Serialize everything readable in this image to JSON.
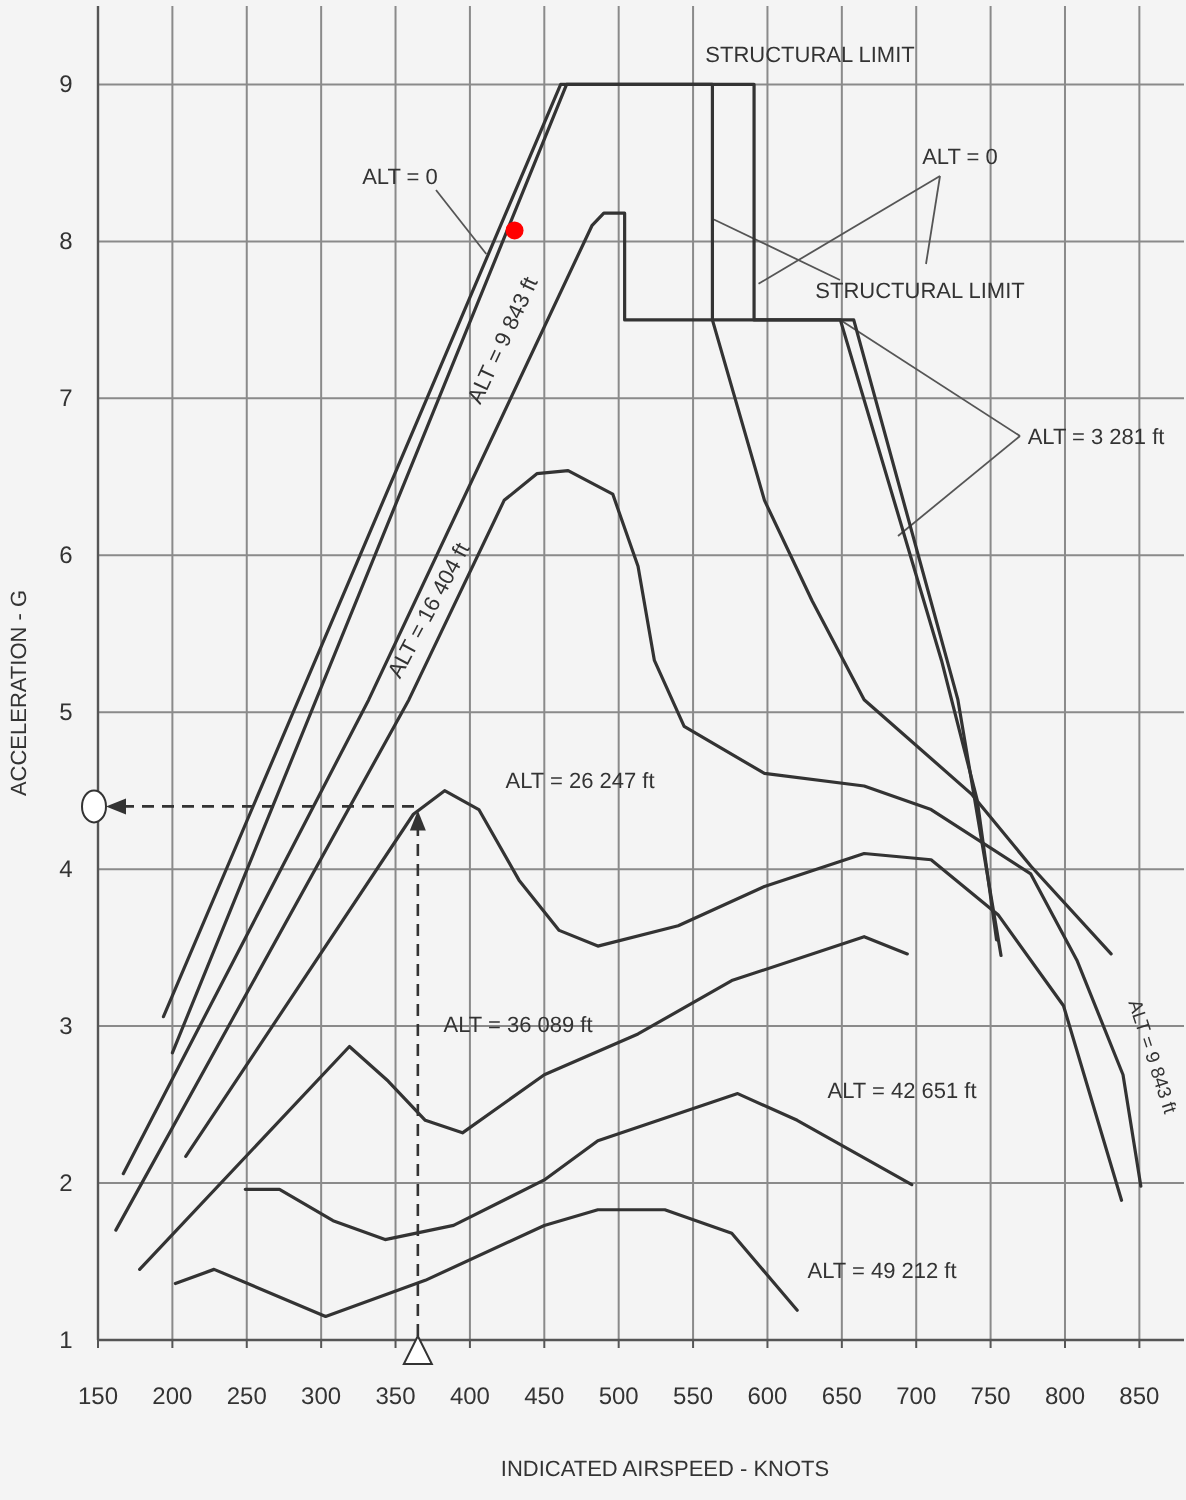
{
  "chart_data": {
    "type": "line",
    "xlabel": "INDICATED AIRSPEED - KNOTS",
    "ylabel": "ACCELERATION - G",
    "xlim": [
      150,
      880
    ],
    "ylim": [
      1,
      9.5
    ],
    "xticks": [
      150,
      200,
      250,
      300,
      350,
      400,
      450,
      500,
      550,
      600,
      650,
      700,
      750,
      800,
      850
    ],
    "yticks": [
      1,
      2,
      3,
      4,
      5,
      6,
      7,
      8,
      9
    ],
    "grid": true,
    "marker": "none",
    "line_style": "solid",
    "series": [
      {
        "color": "#333333",
        "x": [
          194,
          461,
          591,
          591,
          658,
          728,
          757
        ],
        "values": [
          3.06,
          9,
          9,
          7.5,
          7.5,
          5.08,
          3.45
        ]
      },
      {
        "color": "#333333",
        "x": [
          200,
          465,
          563,
          563,
          649,
          717,
          741,
          754
        ],
        "values": [
          2.83,
          9,
          9,
          7.5,
          7.5,
          5.33,
          4.44,
          3.55
        ]
      },
      {
        "color": "#333333",
        "x": [
          167,
          332,
          482,
          490,
          504,
          504,
          563,
          598,
          630,
          665,
          737,
          777,
          831
        ],
        "values": [
          2.06,
          5.08,
          8.1,
          8.18,
          8.18,
          7.5,
          7.5,
          6.35,
          5.71,
          5.08,
          4.48,
          4.02,
          3.46
        ]
      },
      {
        "color": "#333333",
        "x": [
          162,
          359,
          423,
          445,
          466,
          496,
          513,
          524,
          544,
          598,
          665,
          710,
          777,
          808,
          839,
          851
        ],
        "values": [
          1.7,
          5.08,
          6.35,
          6.52,
          6.54,
          6.39,
          5.93,
          5.33,
          4.91,
          4.61,
          4.53,
          4.38,
          3.97,
          3.42,
          2.69,
          1.98
        ]
      },
      {
        "color": "#333333",
        "x": [
          209,
          362,
          383,
          406,
          433,
          460,
          486,
          540,
          598,
          665,
          710,
          755,
          799,
          838
        ],
        "values": [
          2.17,
          4.35,
          4.5,
          4.38,
          3.93,
          3.61,
          3.51,
          3.64,
          3.89,
          4.1,
          4.06,
          3.71,
          3.13,
          1.89
        ]
      },
      {
        "color": "#333333",
        "x": [
          178,
          319,
          345,
          370,
          395,
          450,
          513,
          576,
          665,
          694
        ],
        "values": [
          1.45,
          2.87,
          2.65,
          2.4,
          2.32,
          2.69,
          2.95,
          3.29,
          3.57,
          3.46
        ]
      },
      {
        "color": "#333333",
        "x": [
          249,
          272,
          308,
          343,
          389,
          450,
          486,
          580,
          620,
          697
        ],
        "values": [
          1.96,
          1.96,
          1.76,
          1.64,
          1.73,
          2.02,
          2.27,
          2.57,
          2.4,
          1.99
        ]
      },
      {
        "color": "#333333",
        "x": [
          202,
          228,
          303,
          370,
          450,
          486,
          531,
          576,
          620
        ],
        "values": [
          1.36,
          1.45,
          1.15,
          1.38,
          1.73,
          1.83,
          1.83,
          1.68,
          1.19
        ]
      },
      {
        "type": "scatter",
        "marker": "circle",
        "color": "#ff0000",
        "x": [
          430
        ],
        "values": [
          8.07
        ]
      }
    ],
    "ref_lines": [
      {
        "axis": "x",
        "value": 365,
        "line_style": "dashed",
        "color": "#333333"
      },
      {
        "axis": "y",
        "value": 4.4,
        "line_style": "dashed",
        "color": "#333333"
      }
    ],
    "annotations": [
      "STRUCTURAL LIMIT",
      {
        "text": "ALT = 0",
        "x": 411,
        "y": 7.92
      },
      "ALT = 9 843 ft",
      "ALT = 16 404 ft",
      "ALT = 26 247 ft",
      "ALT = 36 089 ft",
      "ALT = 42 651 ft",
      "ALT = 49 212 ft",
      {
        "text": "ALT = 0",
        "x": 594,
        "y": 7.73
      },
      {
        "text": "STRUCTURAL LIMIT",
        "x": 564,
        "y": 8.14
      },
      {
        "text": "ALT = 3 281 ft",
        "x": 649,
        "y": 7.5
      },
      "ALT = 9 843 ft"
    ]
  }
}
